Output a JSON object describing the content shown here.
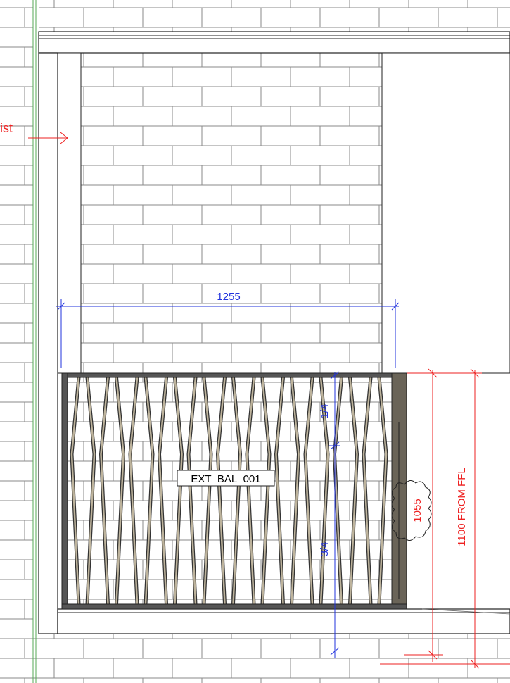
{
  "labels": {
    "side_note": "ist",
    "width_dimension": "1255",
    "upper_ratio": "1/4",
    "lower_ratio": "3/4",
    "tag": "EXT_BAL_001",
    "cloud_dimension": "1055",
    "height_dimension": "1100 FROM FFL"
  }
}
